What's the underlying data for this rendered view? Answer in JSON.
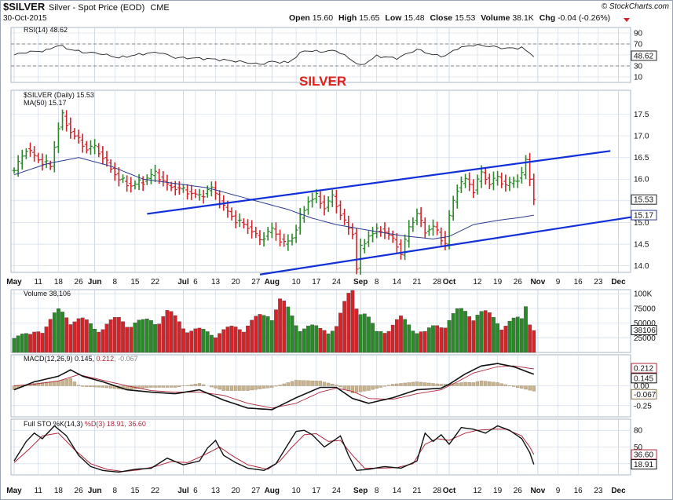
{
  "header": {
    "symbol": "$SILVER",
    "name": "Silver - Spot Price (EOD)",
    "exchange": "CME",
    "brand": "© StockCharts.com",
    "date": "30-Oct-2015",
    "open_label": "Open",
    "open": "15.60",
    "high_label": "High",
    "high": "15.65",
    "low_label": "Low",
    "low": "15.48",
    "close_label": "Close",
    "close": "15.53",
    "volume_label": "Volume",
    "volume": "38.1K",
    "chg_label": "Chg",
    "chg": "-0.04 (-0.26%)"
  },
  "annotation": {
    "text": "SILVER",
    "color": "#e0201b"
  },
  "colors": {
    "up": "#2a8a2a",
    "down": "#d4242a",
    "ma": "#2c3a8e",
    "trend": "#1230d8",
    "grid": "#c9d4e3",
    "panel_bg": "#ffffff",
    "frame": "#b8c3d1"
  },
  "x_axis": {
    "labels": [
      {
        "text": "May",
        "month": true,
        "i": 0
      },
      {
        "text": "11",
        "i": 6
      },
      {
        "text": "18",
        "i": 11
      },
      {
        "text": "26",
        "i": 16
      },
      {
        "text": "Jun",
        "month": true,
        "i": 20
      },
      {
        "text": "8",
        "i": 25
      },
      {
        "text": "15",
        "i": 30
      },
      {
        "text": "22",
        "i": 35
      },
      {
        "text": "Jul",
        "month": true,
        "i": 42
      },
      {
        "text": "6",
        "i": 45
      },
      {
        "text": "13",
        "i": 50
      },
      {
        "text": "20",
        "i": 55
      },
      {
        "text": "27",
        "i": 60
      },
      {
        "text": "Aug",
        "month": true,
        "i": 64
      },
      {
        "text": "10",
        "i": 70
      },
      {
        "text": "17",
        "i": 75
      },
      {
        "text": "24",
        "i": 80
      },
      {
        "text": "Sep",
        "month": true,
        "i": 86
      },
      {
        "text": "8",
        "i": 90
      },
      {
        "text": "14",
        "i": 95
      },
      {
        "text": "21",
        "i": 100
      },
      {
        "text": "28",
        "i": 105
      },
      {
        "text": "Oct",
        "month": true,
        "i": 108
      },
      {
        "text": "12",
        "i": 115
      },
      {
        "text": "19",
        "i": 120
      },
      {
        "text": "26",
        "i": 125
      },
      {
        "text": "Nov",
        "month": true,
        "i": 130
      },
      {
        "text": "9",
        "i": 135
      },
      {
        "text": "16",
        "i": 140
      },
      {
        "text": "23",
        "i": 145
      },
      {
        "text": "Dec",
        "month": true,
        "i": 150
      }
    ]
  },
  "panels": {
    "rsi": {
      "label": "RSI(14) 48.62",
      "last": "48.62",
      "ticks": [
        "90",
        "70",
        "50",
        "30",
        "10"
      ],
      "ylim": [
        0,
        100
      ]
    },
    "price": {
      "label": "$SILVER (Daily) 15.53",
      "ma_label": "MA(50) 15.17",
      "last": "15.53",
      "ma_last": "15.17",
      "ticks": [
        "17.5",
        "17.0",
        "16.5",
        "16.0",
        "15.5",
        "15.0",
        "14.5",
        "14.0"
      ],
      "ylim": [
        13.85,
        18.05
      ]
    },
    "volume": {
      "label": "Volume 38,106",
      "last": "38106",
      "ticks": [
        "100K",
        "75000",
        "50000",
        "25000"
      ],
      "ylim": [
        0,
        107000
      ]
    },
    "macd": {
      "label_main": "MACD(12,26,9) 0.145, ",
      "label_signal": "0.212",
      "label_hist": ", -0.067",
      "last_macd": "0.145",
      "last_signal": "0.212",
      "last_hist": "-0.067",
      "ticks": [
        "0.00",
        "-0.25"
      ],
      "ylim": [
        -0.39,
        0.39
      ]
    },
    "sto": {
      "label_main": "Full STO %K(14,3) ",
      "label_d": "%D(3) 18.91, ",
      "label_last": "36.60",
      "last_k": "18.91",
      "last_d": "36.60",
      "ticks": [
        "80",
        "50",
        "20"
      ],
      "ylim": [
        0,
        100
      ]
    }
  },
  "chart_data": {
    "type": "line",
    "title": "$SILVER Silver - Spot Price (EOD) CME",
    "anchors": {
      "price_close": [
        [
          0,
          16.2
        ],
        [
          3,
          16.7
        ],
        [
          6,
          16.45
        ],
        [
          9,
          16.3
        ],
        [
          11,
          17.2
        ],
        [
          12,
          17.45
        ],
        [
          14,
          17.1
        ],
        [
          16,
          16.9
        ],
        [
          18,
          16.7
        ],
        [
          20,
          16.75
        ],
        [
          22,
          16.5
        ],
        [
          26,
          16.0
        ],
        [
          29,
          15.85
        ],
        [
          32,
          15.95
        ],
        [
          35,
          16.15
        ],
        [
          38,
          15.85
        ],
        [
          42,
          15.75
        ],
        [
          46,
          15.6
        ],
        [
          49,
          15.8
        ],
        [
          52,
          15.35
        ],
        [
          55,
          15.05
        ],
        [
          58,
          14.9
        ],
        [
          61,
          14.6
        ],
        [
          64,
          14.85
        ],
        [
          67,
          14.5
        ],
        [
          69,
          14.65
        ],
        [
          71,
          15.1
        ],
        [
          73,
          15.5
        ],
        [
          75,
          15.6
        ],
        [
          77,
          15.35
        ],
        [
          79,
          15.6
        ],
        [
          82,
          15.0
        ],
        [
          84,
          14.75
        ],
        [
          85,
          13.95
        ],
        [
          86,
          14.4
        ],
        [
          88,
          14.7
        ],
        [
          91,
          14.85
        ],
        [
          93,
          14.7
        ],
        [
          95,
          14.5
        ],
        [
          96,
          14.25
        ],
        [
          98,
          14.9
        ],
        [
          100,
          15.2
        ],
        [
          102,
          14.8
        ],
        [
          104,
          14.9
        ],
        [
          106,
          14.65
        ],
        [
          107,
          14.5
        ],
        [
          108,
          15.15
        ],
        [
          110,
          15.8
        ],
        [
          112,
          16.0
        ],
        [
          114,
          15.75
        ],
        [
          116,
          16.15
        ],
        [
          118,
          15.9
        ],
        [
          120,
          16.05
        ],
        [
          122,
          15.85
        ],
        [
          124,
          15.95
        ],
        [
          126,
          16.1
        ],
        [
          127,
          16.45
        ],
        [
          128,
          16.0
        ],
        [
          129,
          15.53
        ]
      ],
      "ma50": [
        [
          0,
          16.1
        ],
        [
          8,
          16.35
        ],
        [
          16,
          16.5
        ],
        [
          24,
          16.3
        ],
        [
          32,
          16.0
        ],
        [
          40,
          15.9
        ],
        [
          48,
          15.8
        ],
        [
          56,
          15.6
        ],
        [
          62,
          15.45
        ],
        [
          68,
          15.3
        ],
        [
          74,
          15.1
        ],
        [
          80,
          14.95
        ],
        [
          88,
          14.82
        ],
        [
          96,
          14.7
        ],
        [
          104,
          14.62
        ],
        [
          108,
          14.68
        ],
        [
          114,
          14.95
        ],
        [
          120,
          15.05
        ],
        [
          126,
          15.12
        ],
        [
          129,
          15.17
        ]
      ],
      "rsi": [
        [
          0,
          50
        ],
        [
          3,
          55
        ],
        [
          8,
          58
        ],
        [
          11,
          68
        ],
        [
          13,
          62
        ],
        [
          17,
          55
        ],
        [
          21,
          53
        ],
        [
          26,
          45
        ],
        [
          32,
          52
        ],
        [
          36,
          55
        ],
        [
          40,
          45
        ],
        [
          46,
          44
        ],
        [
          50,
          42
        ],
        [
          56,
          38
        ],
        [
          61,
          33
        ],
        [
          64,
          38
        ],
        [
          68,
          36
        ],
        [
          72,
          58
        ],
        [
          76,
          56
        ],
        [
          80,
          58
        ],
        [
          84,
          40
        ],
        [
          86,
          30
        ],
        [
          90,
          48
        ],
        [
          95,
          44
        ],
        [
          100,
          60
        ],
        [
          104,
          50
        ],
        [
          107,
          48
        ],
        [
          110,
          62
        ],
        [
          114,
          68
        ],
        [
          118,
          66
        ],
        [
          122,
          62
        ],
        [
          126,
          63
        ],
        [
          129,
          48.62
        ]
      ],
      "volume": [
        [
          0,
          30000
        ],
        [
          4,
          25000
        ],
        [
          8,
          45000
        ],
        [
          11,
          60000
        ],
        [
          15,
          55000
        ],
        [
          20,
          38000
        ],
        [
          26,
          50000
        ],
        [
          32,
          45000
        ],
        [
          38,
          60000
        ],
        [
          44,
          35000
        ],
        [
          50,
          30000
        ],
        [
          56,
          40000
        ],
        [
          62,
          55000
        ],
        [
          66,
          80000
        ],
        [
          70,
          45000
        ],
        [
          76,
          35000
        ],
        [
          80,
          40000
        ],
        [
          84,
          100000
        ],
        [
          86,
          70000
        ],
        [
          90,
          30000
        ],
        [
          96,
          50000
        ],
        [
          102,
          30000
        ],
        [
          106,
          45000
        ],
        [
          110,
          60000
        ],
        [
          114,
          65000
        ],
        [
          118,
          55000
        ],
        [
          122,
          45000
        ],
        [
          126,
          50000
        ],
        [
          127,
          78000
        ],
        [
          129,
          38106
        ]
      ],
      "macd": [
        [
          0,
          -0.05
        ],
        [
          5,
          0.05
        ],
        [
          11,
          0.12
        ],
        [
          14,
          0.2
        ],
        [
          17,
          0.12
        ],
        [
          22,
          0.05
        ],
        [
          28,
          -0.05
        ],
        [
          34,
          -0.08
        ],
        [
          40,
          -0.1
        ],
        [
          46,
          -0.05
        ],
        [
          52,
          -0.18
        ],
        [
          58,
          -0.28
        ],
        [
          64,
          -0.3
        ],
        [
          70,
          -0.15
        ],
        [
          76,
          -0.02
        ],
        [
          80,
          -0.02
        ],
        [
          84,
          -0.16
        ],
        [
          88,
          -0.22
        ],
        [
          94,
          -0.15
        ],
        [
          100,
          -0.05
        ],
        [
          106,
          -0.03
        ],
        [
          108,
          0.02
        ],
        [
          112,
          0.15
        ],
        [
          116,
          0.25
        ],
        [
          120,
          0.28
        ],
        [
          124,
          0.24
        ],
        [
          129,
          0.145
        ]
      ],
      "macd_signal": [
        [
          0,
          0.0
        ],
        [
          5,
          0.02
        ],
        [
          11,
          0.06
        ],
        [
          16,
          0.14
        ],
        [
          22,
          0.07
        ],
        [
          28,
          0.0
        ],
        [
          34,
          -0.06
        ],
        [
          40,
          -0.08
        ],
        [
          46,
          -0.08
        ],
        [
          52,
          -0.12
        ],
        [
          58,
          -0.22
        ],
        [
          64,
          -0.28
        ],
        [
          70,
          -0.22
        ],
        [
          76,
          -0.08
        ],
        [
          80,
          -0.03
        ],
        [
          84,
          -0.07
        ],
        [
          88,
          -0.16
        ],
        [
          94,
          -0.17
        ],
        [
          100,
          -0.1
        ],
        [
          106,
          -0.05
        ],
        [
          110,
          0.05
        ],
        [
          114,
          0.16
        ],
        [
          120,
          0.24
        ],
        [
          124,
          0.25
        ],
        [
          129,
          0.212
        ]
      ],
      "sto_k": [
        [
          0,
          25
        ],
        [
          3,
          60
        ],
        [
          5,
          75
        ],
        [
          7,
          65
        ],
        [
          10,
          88
        ],
        [
          13,
          70
        ],
        [
          16,
          35
        ],
        [
          19,
          15
        ],
        [
          22,
          8
        ],
        [
          26,
          5
        ],
        [
          30,
          10
        ],
        [
          34,
          12
        ],
        [
          38,
          30
        ],
        [
          42,
          18
        ],
        [
          46,
          25
        ],
        [
          48,
          48
        ],
        [
          50,
          62
        ],
        [
          52,
          35
        ],
        [
          55,
          22
        ],
        [
          58,
          12
        ],
        [
          62,
          8
        ],
        [
          65,
          20
        ],
        [
          68,
          55
        ],
        [
          70,
          78
        ],
        [
          72,
          80
        ],
        [
          74,
          72
        ],
        [
          77,
          50
        ],
        [
          79,
          60
        ],
        [
          81,
          70
        ],
        [
          83,
          35
        ],
        [
          85,
          8
        ],
        [
          88,
          10
        ],
        [
          92,
          15
        ],
        [
          96,
          12
        ],
        [
          100,
          25
        ],
        [
          102,
          75
        ],
        [
          104,
          60
        ],
        [
          106,
          72
        ],
        [
          108,
          55
        ],
        [
          111,
          85
        ],
        [
          114,
          82
        ],
        [
          117,
          75
        ],
        [
          120,
          88
        ],
        [
          123,
          80
        ],
        [
          126,
          65
        ],
        [
          128,
          40
        ],
        [
          129,
          18.91
        ]
      ],
      "sto_d": [
        [
          0,
          22
        ],
        [
          4,
          48
        ],
        [
          7,
          70
        ],
        [
          11,
          75
        ],
        [
          15,
          45
        ],
        [
          19,
          20
        ],
        [
          23,
          10
        ],
        [
          27,
          6
        ],
        [
          31,
          9
        ],
        [
          35,
          15
        ],
        [
          39,
          24
        ],
        [
          43,
          22
        ],
        [
          47,
          35
        ],
        [
          51,
          50
        ],
        [
          54,
          35
        ],
        [
          58,
          18
        ],
        [
          63,
          10
        ],
        [
          66,
          25
        ],
        [
          69,
          50
        ],
        [
          72,
          72
        ],
        [
          75,
          74
        ],
        [
          78,
          60
        ],
        [
          81,
          62
        ],
        [
          84,
          35
        ],
        [
          87,
          12
        ],
        [
          91,
          12
        ],
        [
          95,
          13
        ],
        [
          99,
          20
        ],
        [
          102,
          55
        ],
        [
          105,
          65
        ],
        [
          108,
          62
        ],
        [
          112,
          75
        ],
        [
          115,
          80
        ],
        [
          119,
          82
        ],
        [
          122,
          82
        ],
        [
          126,
          70
        ],
        [
          128,
          50
        ],
        [
          129,
          36.6
        ]
      ]
    },
    "trendlines": [
      {
        "name": "upper",
        "points": [
          [
            33,
            15.2
          ],
          [
            148,
            16.65
          ]
        ]
      },
      {
        "name": "lower",
        "points": [
          [
            61,
            13.8
          ],
          [
            155,
            15.15
          ]
        ]
      }
    ]
  }
}
